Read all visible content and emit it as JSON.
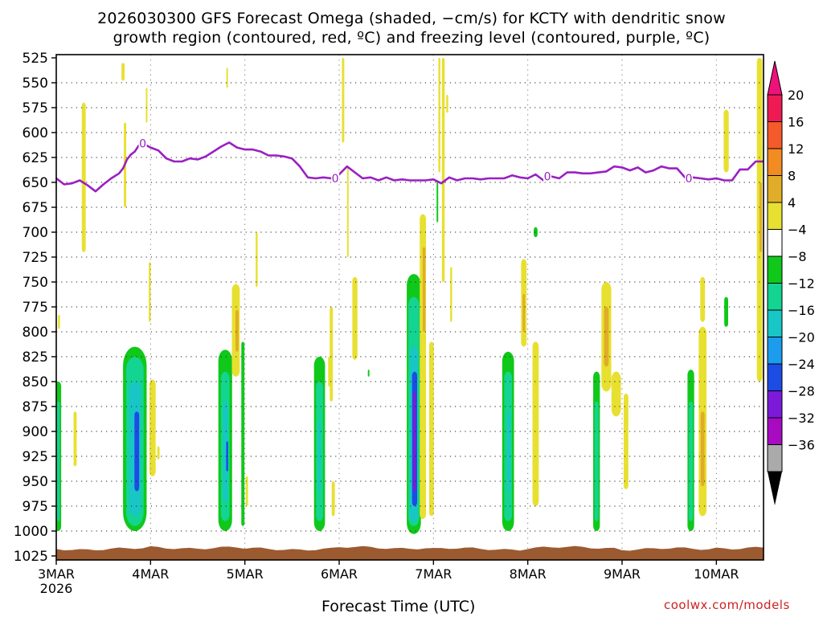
{
  "title_line1": "2026030300 GFS Forecast Omega (shaded, −cm/s) for KCTY with dendritic snow",
  "title_line2": "growth region (contoured, red, ºC) and freezing level (contoured, purple, ºC)",
  "x_axis_title": "Forecast Time (UTC)",
  "credit": "coolwx.com/models",
  "chart_data": {
    "type": "heatmap",
    "pressure_ticks": [
      525,
      550,
      575,
      600,
      625,
      650,
      675,
      700,
      725,
      750,
      775,
      800,
      825,
      850,
      875,
      900,
      925,
      950,
      975,
      1000,
      1025
    ],
    "y_range": [
      525,
      1025
    ],
    "time_ticks": [
      "3MAR",
      "4MAR",
      "5MAR",
      "6MAR",
      "7MAR",
      "8MAR",
      "9MAR",
      "10MAR"
    ],
    "time_tick_hours": [
      0,
      24,
      48,
      72,
      96,
      120,
      144,
      168
    ],
    "x_range_hours": [
      0,
      180
    ],
    "first_tick_year": "2026",
    "grid": "dotted",
    "colorbar": {
      "labels": [
        "20",
        "16",
        "12",
        "8",
        "4",
        "−4",
        "−8",
        "−12",
        "−16",
        "−20",
        "−24",
        "−28",
        "−32",
        "−36"
      ],
      "colors": [
        "#ee1a54",
        "#f55a2a",
        "#f28b22",
        "#e0ad28",
        "#e8e030",
        "#ffffff",
        "#10c81a",
        "#13d490",
        "#18c6c6",
        "#1b9ced",
        "#1d4ce4",
        "#7b1ad9",
        "#a80ac2",
        "#aaaaaa"
      ],
      "top_arrow_color": "#ee117c",
      "bottom_arrow_color": "#000000"
    },
    "freezing_level": {
      "color": "#9a1fc3",
      "contour_label": "0",
      "points": [
        [
          0,
          646
        ],
        [
          2,
          652
        ],
        [
          4,
          651
        ],
        [
          6,
          648
        ],
        [
          8,
          653
        ],
        [
          10,
          659
        ],
        [
          12,
          652
        ],
        [
          14,
          646
        ],
        [
          16,
          641
        ],
        [
          17,
          636
        ],
        [
          18,
          627
        ],
        [
          19,
          622
        ],
        [
          20,
          619
        ],
        [
          21,
          613
        ],
        [
          22,
          611
        ],
        [
          24,
          615
        ],
        [
          26,
          618
        ],
        [
          28,
          626
        ],
        [
          30,
          629
        ],
        [
          32,
          629
        ],
        [
          34,
          626
        ],
        [
          36,
          627
        ],
        [
          38,
          624
        ],
        [
          40,
          619
        ],
        [
          42,
          614
        ],
        [
          44,
          610
        ],
        [
          46,
          615
        ],
        [
          48,
          617
        ],
        [
          50,
          617
        ],
        [
          52,
          619
        ],
        [
          54,
          623
        ],
        [
          56,
          623
        ],
        [
          58,
          624
        ],
        [
          60,
          626
        ],
        [
          62,
          634
        ],
        [
          64,
          645
        ],
        [
          66,
          646
        ],
        [
          68,
          645
        ],
        [
          70,
          646
        ],
        [
          72,
          642
        ],
        [
          74,
          634
        ],
        [
          76,
          640
        ],
        [
          78,
          646
        ],
        [
          80,
          645
        ],
        [
          82,
          648
        ],
        [
          84,
          645
        ],
        [
          86,
          648
        ],
        [
          88,
          647
        ],
        [
          90,
          648
        ],
        [
          92,
          648
        ],
        [
          94,
          648
        ],
        [
          96,
          647
        ],
        [
          98,
          651
        ],
        [
          100,
          645
        ],
        [
          102,
          648
        ],
        [
          104,
          646
        ],
        [
          106,
          646
        ],
        [
          108,
          647
        ],
        [
          110,
          646
        ],
        [
          112,
          646
        ],
        [
          114,
          646
        ],
        [
          116,
          643
        ],
        [
          118,
          645
        ],
        [
          120,
          646
        ],
        [
          122,
          642
        ],
        [
          124,
          648
        ],
        [
          126,
          644
        ],
        [
          128,
          646
        ],
        [
          130,
          640
        ],
        [
          132,
          640
        ],
        [
          134,
          641
        ],
        [
          136,
          641
        ],
        [
          138,
          640
        ],
        [
          140,
          639
        ],
        [
          142,
          634
        ],
        [
          144,
          635
        ],
        [
          146,
          638
        ],
        [
          148,
          635
        ],
        [
          150,
          640
        ],
        [
          152,
          638
        ],
        [
          154,
          634
        ],
        [
          156,
          636
        ],
        [
          158,
          636
        ],
        [
          160,
          645
        ],
        [
          162,
          645
        ],
        [
          164,
          646
        ],
        [
          166,
          647
        ],
        [
          168,
          646
        ],
        [
          170,
          648
        ],
        [
          172,
          648
        ],
        [
          174,
          637
        ],
        [
          176,
          637
        ],
        [
          178,
          629
        ],
        [
          180,
          629
        ]
      ]
    },
    "shaded_features": [
      {
        "t": 0.5,
        "p0": 850,
        "p1": 1000,
        "w": 1.5,
        "v": -6
      },
      {
        "t": 0.5,
        "p0": 870,
        "p1": 990,
        "w": 0.8,
        "v": -10
      },
      {
        "t": 0.7,
        "p0": 783,
        "p1": 797,
        "w": 0.5,
        "v": 5
      },
      {
        "t": 7,
        "p0": 570,
        "p1": 720,
        "w": 1.0,
        "v": 5
      },
      {
        "t": 4.8,
        "p0": 880,
        "p1": 935,
        "w": 0.8,
        "v": 5
      },
      {
        "t": 17.5,
        "p0": 590,
        "p1": 675,
        "w": 0.6,
        "v": 5
      },
      {
        "t": 20,
        "p0": 815,
        "p1": 1000,
        "w": 6,
        "v": -6
      },
      {
        "t": 20,
        "p0": 825,
        "p1": 995,
        "w": 4.5,
        "v": -10
      },
      {
        "t": 20,
        "p0": 850,
        "p1": 985,
        "w": 3,
        "v": -14
      },
      {
        "t": 20.5,
        "p0": 880,
        "p1": 960,
        "w": 1.2,
        "v": -18
      },
      {
        "t": 24.5,
        "p0": 848,
        "p1": 945,
        "w": 1.6,
        "v": 5
      },
      {
        "t": 23.8,
        "p0": 730,
        "p1": 790,
        "w": 0.5,
        "v": 5
      },
      {
        "t": 26,
        "p0": 915,
        "p1": 928,
        "w": 0.6,
        "v": 5
      },
      {
        "t": 17,
        "p0": 530,
        "p1": 548,
        "w": 0.8,
        "v": 5
      },
      {
        "t": 23,
        "p0": 555,
        "p1": 590,
        "w": 0.4,
        "v": 5
      },
      {
        "t": 43,
        "p0": 818,
        "p1": 1000,
        "w": 3.5,
        "v": -6
      },
      {
        "t": 43,
        "p0": 840,
        "p1": 990,
        "w": 2.2,
        "v": -10
      },
      {
        "t": 43,
        "p0": 870,
        "p1": 970,
        "w": 1.2,
        "v": -14
      },
      {
        "t": 43.5,
        "p0": 910,
        "p1": 940,
        "w": 0.5,
        "v": -18
      },
      {
        "t": 45.7,
        "p0": 752,
        "p1": 845,
        "w": 2,
        "v": 5
      },
      {
        "t": 46,
        "p0": 778,
        "p1": 820,
        "w": 0.8,
        "v": 10
      },
      {
        "t": 47.5,
        "p0": 810,
        "p1": 995,
        "w": 0.8,
        "v": -6
      },
      {
        "t": 48.5,
        "p0": 945,
        "p1": 975,
        "w": 0.6,
        "v": 5
      },
      {
        "t": 51,
        "p0": 700,
        "p1": 755,
        "w": 0.5,
        "v": 5
      },
      {
        "t": 43.5,
        "p0": 535,
        "p1": 555,
        "w": 0.3,
        "v": 5
      },
      {
        "t": 67,
        "p0": 825,
        "p1": 1000,
        "w": 2.8,
        "v": -6
      },
      {
        "t": 67,
        "p0": 850,
        "p1": 990,
        "w": 1.8,
        "v": -10
      },
      {
        "t": 67,
        "p0": 890,
        "p1": 960,
        "w": 0.6,
        "v": -14
      },
      {
        "t": 69.5,
        "p0": 825,
        "p1": 855,
        "w": 0.6,
        "v": 5
      },
      {
        "t": 70,
        "p0": 775,
        "p1": 870,
        "w": 0.8,
        "v": 5
      },
      {
        "t": 70.5,
        "p0": 950,
        "p1": 985,
        "w": 0.8,
        "v": 5
      },
      {
        "t": 76,
        "p0": 745,
        "p1": 828,
        "w": 1.3,
        "v": 5
      },
      {
        "t": 79.5,
        "p0": 838,
        "p1": 845,
        "w": 0.4,
        "v": -6
      },
      {
        "t": 73,
        "p0": 525,
        "p1": 610,
        "w": 0.6,
        "v": 5
      },
      {
        "t": 74.2,
        "p0": 635,
        "p1": 725,
        "w": 0.4,
        "v": 5
      },
      {
        "t": 91,
        "p0": 742,
        "p1": 1003,
        "w": 3.6,
        "v": -6
      },
      {
        "t": 91,
        "p0": 765,
        "p1": 995,
        "w": 2.8,
        "v": -10
      },
      {
        "t": 91,
        "p0": 815,
        "p1": 990,
        "w": 2,
        "v": -14
      },
      {
        "t": 91.2,
        "p0": 840,
        "p1": 975,
        "w": 1.3,
        "v": -18
      },
      {
        "t": 91.2,
        "p0": 860,
        "p1": 960,
        "w": 0.8,
        "v": -26
      },
      {
        "t": 93.3,
        "p0": 682,
        "p1": 988,
        "w": 1.6,
        "v": 5
      },
      {
        "t": 93.6,
        "p0": 715,
        "p1": 800,
        "w": 0.7,
        "v": 10
      },
      {
        "t": 95.5,
        "p0": 810,
        "p1": 985,
        "w": 1.2,
        "v": 5
      },
      {
        "t": 97,
        "p0": 650,
        "p1": 690,
        "w": 0.3,
        "v": -6
      },
      {
        "t": 97.5,
        "p0": 525,
        "p1": 640,
        "w": 0.5,
        "v": 5
      },
      {
        "t": 98.5,
        "p0": 525,
        "p1": 750,
        "w": 0.7,
        "v": 5
      },
      {
        "t": 99.5,
        "p0": 562,
        "p1": 580,
        "w": 0.5,
        "v": 5
      },
      {
        "t": 100.5,
        "p0": 735,
        "p1": 790,
        "w": 0.5,
        "v": 5
      },
      {
        "t": 115,
        "p0": 820,
        "p1": 1000,
        "w": 3,
        "v": -6
      },
      {
        "t": 115,
        "p0": 840,
        "p1": 990,
        "w": 2,
        "v": -10
      },
      {
        "t": 115.2,
        "p0": 880,
        "p1": 960,
        "w": 0.7,
        "v": -14
      },
      {
        "t": 119,
        "p0": 727,
        "p1": 815,
        "w": 1.4,
        "v": 5
      },
      {
        "t": 119,
        "p0": 762,
        "p1": 800,
        "w": 0.6,
        "v": 10
      },
      {
        "t": 122,
        "p0": 810,
        "p1": 975,
        "w": 1.6,
        "v": 5
      },
      {
        "t": 122,
        "p0": 695,
        "p1": 705,
        "w": 1.0,
        "v": -6
      },
      {
        "t": 137.5,
        "p0": 840,
        "p1": 1000,
        "w": 1.7,
        "v": -6
      },
      {
        "t": 137.5,
        "p0": 870,
        "p1": 990,
        "w": 1,
        "v": -10
      },
      {
        "t": 140,
        "p0": 750,
        "p1": 860,
        "w": 2.5,
        "v": 5
      },
      {
        "t": 140,
        "p0": 775,
        "p1": 835,
        "w": 1.2,
        "v": 10
      },
      {
        "t": 142.5,
        "p0": 840,
        "p1": 885,
        "w": 2.4,
        "v": 5
      },
      {
        "t": 145,
        "p0": 862,
        "p1": 958,
        "w": 1.2,
        "v": 5
      },
      {
        "t": 161.5,
        "p0": 838,
        "p1": 1000,
        "w": 1.7,
        "v": -6
      },
      {
        "t": 161.5,
        "p0": 870,
        "p1": 990,
        "w": 1,
        "v": -10
      },
      {
        "t": 164.5,
        "p0": 745,
        "p1": 790,
        "w": 1.2,
        "v": 5
      },
      {
        "t": 164.5,
        "p0": 795,
        "p1": 985,
        "w": 2,
        "v": 5
      },
      {
        "t": 164.5,
        "p0": 880,
        "p1": 955,
        "w": 1,
        "v": 10
      },
      {
        "t": 170.5,
        "p0": 577,
        "p1": 640,
        "w": 1.3,
        "v": 5
      },
      {
        "t": 170.5,
        "p0": 765,
        "p1": 795,
        "w": 1.0,
        "v": -6
      },
      {
        "t": 179,
        "p0": 525,
        "p1": 850,
        "w": 1.4,
        "v": 5
      },
      {
        "t": 179.3,
        "p0": 650,
        "p1": 720,
        "w": 0.6,
        "v": 10
      }
    ],
    "terrain": {
      "color": "#9c5a30",
      "surface_pressure": 1018
    }
  }
}
